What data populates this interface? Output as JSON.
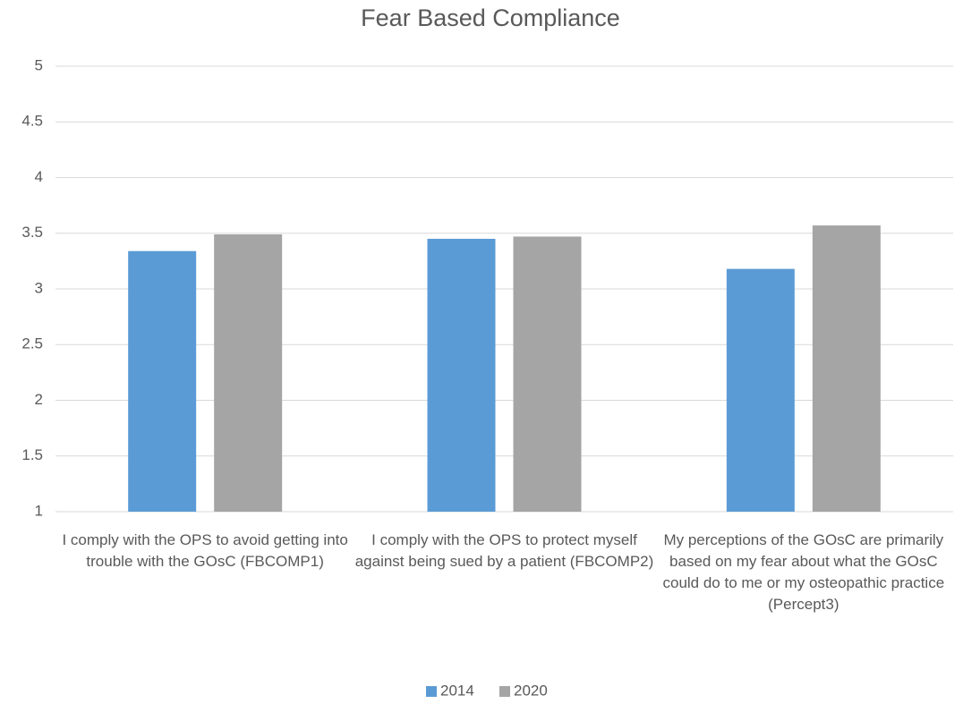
{
  "chart_data": {
    "type": "bar",
    "title": "Fear Based Compliance",
    "categories": [
      "I comply with the OPS to avoid getting into trouble with the GOsC (FBCOMP1)",
      "I comply with the OPS to protect myself against being sued by a patient (FBCOMP2)",
      "My perceptions of the GOsC are primarily based on my fear about what the GOsC could do to me or my osteopathic practice (Percept3)"
    ],
    "series": [
      {
        "name": "2014",
        "color": "#5b9bd5",
        "values": [
          3.34,
          3.45,
          3.18
        ]
      },
      {
        "name": "2020",
        "color": "#a5a5a5",
        "values": [
          3.49,
          3.47,
          3.57
        ]
      }
    ],
    "ylim": [
      1,
      5
    ],
    "yticks": [
      1,
      1.5,
      2,
      2.5,
      3,
      3.5,
      4,
      4.5,
      5
    ],
    "grid": true,
    "legend": "bottom"
  }
}
